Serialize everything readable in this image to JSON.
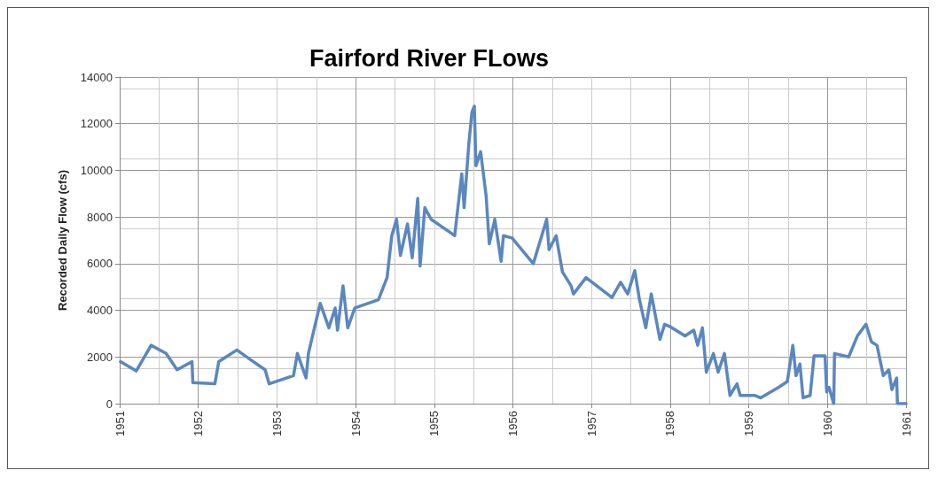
{
  "chart_data": {
    "type": "line",
    "title": "Fairford River FLows",
    "ylabel": "Recorded Daily Flow (cfs)",
    "xlim": [
      1951,
      1961
    ],
    "xticks": [
      1951,
      1952,
      1953,
      1954,
      1955,
      1956,
      1957,
      1958,
      1959,
      1960,
      1961
    ],
    "ylim": [
      0,
      14000
    ],
    "yticks": [
      0,
      2000,
      4000,
      6000,
      8000,
      10000,
      12000,
      14000
    ],
    "grid": true,
    "marker": "none",
    "line_style": "solid",
    "series": [
      {
        "color": "#5b87c0",
        "x": [
          1951.01,
          1951.21,
          1951.4,
          1951.59,
          1951.73,
          1951.92,
          1951.93,
          1952.21,
          1952.26,
          1952.49,
          1952.7,
          1952.85,
          1952.9,
          1953.21,
          1953.26,
          1953.37,
          1953.4,
          1953.55,
          1953.66,
          1953.74,
          1953.77,
          1953.84,
          1953.9,
          1953.99,
          1954.29,
          1954.4,
          1954.46,
          1954.52,
          1954.57,
          1954.66,
          1954.72,
          1954.79,
          1954.82,
          1954.88,
          1954.96,
          1955.26,
          1955.35,
          1955.38,
          1955.44,
          1955.48,
          1955.51,
          1955.53,
          1955.59,
          1955.66,
          1955.7,
          1955.77,
          1955.85,
          1955.88,
          1955.99,
          1956.26,
          1956.43,
          1956.46,
          1956.55,
          1956.63,
          1956.74,
          1956.77,
          1956.93,
          1957.26,
          1957.37,
          1957.46,
          1957.55,
          1957.61,
          1957.69,
          1957.76,
          1957.87,
          1957.93,
          1958.0,
          1958.19,
          1958.3,
          1958.35,
          1958.41,
          1958.46,
          1958.55,
          1958.61,
          1958.69,
          1958.76,
          1958.85,
          1958.89,
          1959.08,
          1959.15,
          1959.38,
          1959.49,
          1959.56,
          1959.6,
          1959.65,
          1959.69,
          1959.78,
          1959.83,
          1959.97,
          1959.99,
          1960.02,
          1960.08,
          1960.09,
          1960.27,
          1960.38,
          1960.49,
          1960.56,
          1960.63,
          1960.71,
          1960.78,
          1960.82,
          1960.88,
          1960.89,
          1961.0
        ],
        "values": [
          1800,
          1400,
          2500,
          2150,
          1450,
          1800,
          900,
          850,
          1800,
          2300,
          1800,
          1450,
          850,
          1200,
          2150,
          1100,
          2150,
          4300,
          3250,
          4100,
          3150,
          5050,
          3250,
          4100,
          4450,
          5400,
          7200,
          7900,
          6350,
          7700,
          6250,
          8800,
          5900,
          8400,
          7900,
          7200,
          9850,
          8400,
          11150,
          12500,
          12750,
          10200,
          10800,
          8900,
          6850,
          7900,
          6100,
          7200,
          7100,
          6000,
          7900,
          6600,
          7200,
          5650,
          5050,
          4700,
          5400,
          4550,
          5200,
          4700,
          5700,
          4450,
          3250,
          4700,
          2750,
          3400,
          3300,
          2900,
          3150,
          2500,
          3250,
          1350,
          2150,
          1350,
          2150,
          350,
          850,
          350,
          350,
          250,
          700,
          950,
          2500,
          1200,
          1700,
          250,
          350,
          2050,
          2050,
          500,
          700,
          0,
          2150,
          2000,
          2900,
          3400,
          2650,
          2500,
          1200,
          1450,
          600,
          1100,
          0,
          0
        ]
      }
    ]
  }
}
